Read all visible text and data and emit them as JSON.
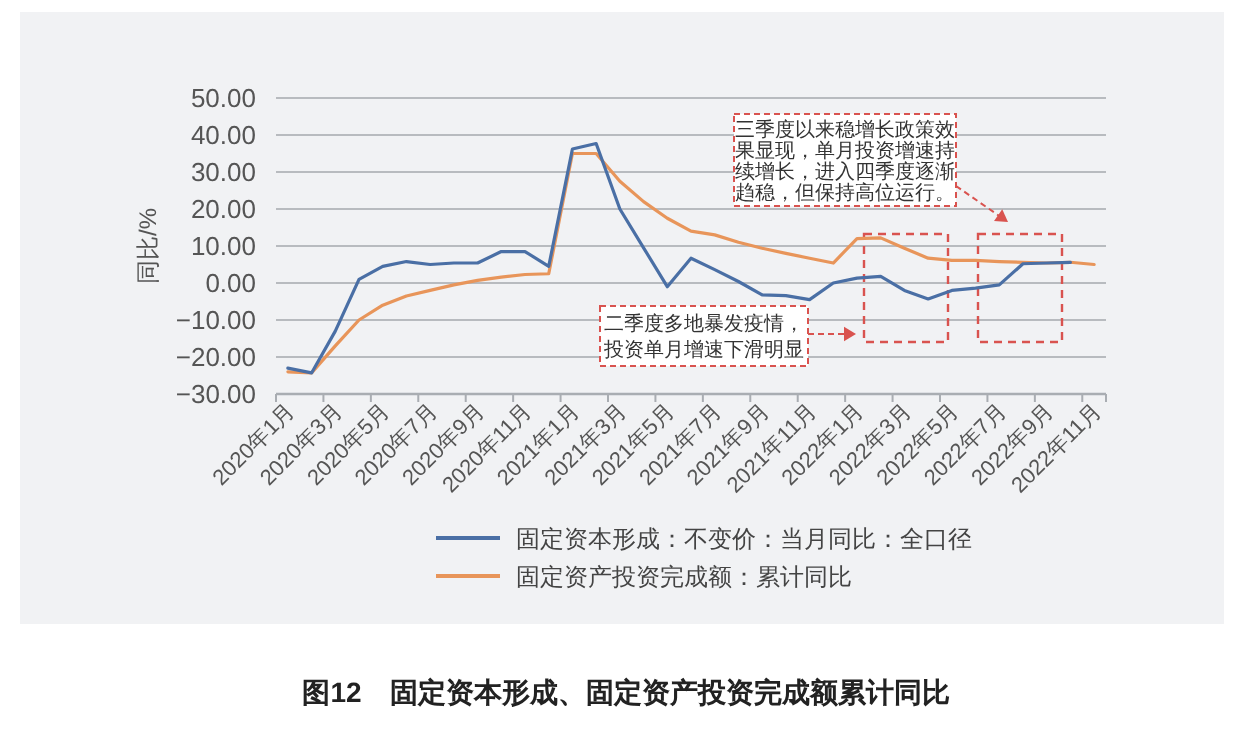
{
  "chart_data": {
    "type": "line",
    "title": "图12　固定资本形成、固定资产投资完成额累计同比",
    "ylabel": "同比/%",
    "categories": [
      "2020年1月",
      null,
      "2020年3月",
      null,
      "2020年5月",
      null,
      "2020年7月",
      null,
      "2020年9月",
      null,
      "2020年11月",
      null,
      "2021年1月",
      null,
      "2021年3月",
      null,
      "2021年5月",
      null,
      "2021年7月",
      null,
      "2021年9月",
      null,
      "2021年11月",
      null,
      "2022年1月",
      null,
      "2022年3月",
      null,
      "2022年5月",
      null,
      "2022年7月",
      null,
      "2022年9月",
      null,
      "2022年11月"
    ],
    "series": [
      {
        "name": "固定资本形成：不变价：当月同比：全口径",
        "color": "#4a6fa5",
        "values": [
          -23,
          -24.3,
          -13,
          1,
          4.5,
          5.8,
          5,
          5.4,
          5.4,
          8.5,
          8.5,
          4.5,
          36.2,
          37.7,
          20,
          9.5,
          -1,
          6.7,
          3.6,
          0.4,
          -3.2,
          -3.4,
          -4.5,
          0,
          1.3,
          1.8,
          -2,
          -4.3,
          -2,
          -1.4,
          -0.5,
          5.2,
          5.4,
          5.6,
          null
        ]
      },
      {
        "name": "固定资产投资完成额：累计同比",
        "color": "#e8955a",
        "values": [
          -24,
          -24.3,
          -17,
          -10,
          -6,
          -3.5,
          -2,
          -0.5,
          0.7,
          1.6,
          2.3,
          2.5,
          35,
          35,
          27.5,
          22,
          17.5,
          14,
          13,
          11,
          9.4,
          8,
          6.7,
          5.4,
          12,
          12.2,
          9.4,
          6.7,
          6.1,
          6.1,
          5.8,
          5.6,
          5.4,
          5.6,
          5
        ]
      }
    ],
    "ylim": [
      -30,
      50
    ],
    "yticks": [
      {
        "value": -30,
        "label": "−30.00"
      },
      {
        "value": -20,
        "label": "−20.00"
      },
      {
        "value": -10,
        "label": "−10.00"
      },
      {
        "value": 0,
        "label": "0.00"
      },
      {
        "value": 10,
        "label": "10.00"
      },
      {
        "value": 20,
        "label": "20.00"
      },
      {
        "value": 30,
        "label": "30.00"
      },
      {
        "value": 40,
        "label": "40.00"
      },
      {
        "value": 50,
        "label": "50.00"
      }
    ],
    "grid": "y",
    "legend": "bottom",
    "annotations": [
      "二季度多地暴发疫情，投资单月增速下滑明显",
      "三季度以来稳增长政策效果显现，单月投资增速持续增长，进入四季度逐渐趋稳，但保持高位运行。"
    ]
  }
}
